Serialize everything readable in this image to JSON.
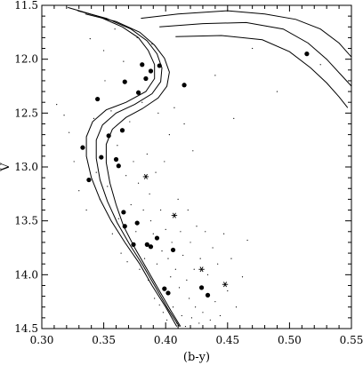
{
  "chart_data": {
    "type": "scatter",
    "title": "",
    "xlabel": "(b-y)",
    "ylabel": "V",
    "xlim": [
      0.3,
      0.55
    ],
    "ylim": [
      14.5,
      11.5
    ],
    "y_inverted": true,
    "grid": false,
    "x_ticks": [
      "0.30",
      "0.35",
      "0.40",
      "0.45",
      "0.50",
      "0.55"
    ],
    "y_ticks": [
      "11.5",
      "12.0",
      "12.5",
      "13.0",
      "13.5",
      "14.0",
      "14.5"
    ],
    "series": [
      {
        "marker": "filled-circle",
        "points": [
          [
            0.333,
            12.82
          ],
          [
            0.338,
            13.12
          ],
          [
            0.345,
            12.37
          ],
          [
            0.348,
            12.91
          ],
          [
            0.354,
            12.71
          ],
          [
            0.36,
            12.93
          ],
          [
            0.362,
            12.99
          ],
          [
            0.365,
            12.66
          ],
          [
            0.366,
            13.42
          ],
          [
            0.367,
            13.55
          ],
          [
            0.367,
            12.21
          ],
          [
            0.374,
            13.72
          ],
          [
            0.378,
            12.31
          ],
          [
            0.377,
            13.52
          ],
          [
            0.381,
            12.05
          ],
          [
            0.384,
            12.18
          ],
          [
            0.385,
            13.72
          ],
          [
            0.388,
            12.11
          ],
          [
            0.388,
            13.74
          ],
          [
            0.393,
            13.66
          ],
          [
            0.395,
            12.06
          ],
          [
            0.399,
            14.13
          ],
          [
            0.402,
            14.17
          ],
          [
            0.406,
            13.77
          ],
          [
            0.415,
            12.24
          ],
          [
            0.429,
            14.12
          ],
          [
            0.434,
            14.19
          ],
          [
            0.514,
            11.95
          ]
        ]
      },
      {
        "marker": "asterisk",
        "points": [
          [
            0.384,
            13.09
          ],
          [
            0.407,
            13.45
          ],
          [
            0.429,
            13.95
          ],
          [
            0.448,
            14.09
          ]
        ]
      },
      {
        "marker": "dot",
        "points": [
          [
            0.312,
            12.42
          ],
          [
            0.318,
            12.52
          ],
          [
            0.322,
            12.68
          ],
          [
            0.326,
            12.95
          ],
          [
            0.33,
            13.22
          ],
          [
            0.336,
            13.4
          ],
          [
            0.339,
            11.81
          ],
          [
            0.342,
            12.55
          ],
          [
            0.344,
            13.05
          ],
          [
            0.347,
            13.3
          ],
          [
            0.35,
            11.92
          ],
          [
            0.351,
            12.2
          ],
          [
            0.353,
            13.18
          ],
          [
            0.356,
            12.48
          ],
          [
            0.357,
            13.62
          ],
          [
            0.359,
            11.72
          ],
          [
            0.361,
            12.8
          ],
          [
            0.362,
            13.48
          ],
          [
            0.364,
            13.8
          ],
          [
            0.366,
            12.02
          ],
          [
            0.368,
            13.08
          ],
          [
            0.369,
            13.88
          ],
          [
            0.371,
            12.58
          ],
          [
            0.372,
            13.35
          ],
          [
            0.374,
            12.95
          ],
          [
            0.376,
            13.6
          ],
          [
            0.377,
            11.8
          ],
          [
            0.378,
            13.15
          ],
          [
            0.379,
            13.95
          ],
          [
            0.381,
            12.4
          ],
          [
            0.382,
            13.4
          ],
          [
            0.383,
            13.85
          ],
          [
            0.385,
            12.88
          ],
          [
            0.386,
            14.05
          ],
          [
            0.387,
            13.25
          ],
          [
            0.388,
            13.5
          ],
          [
            0.389,
            11.86
          ],
          [
            0.39,
            13.62
          ],
          [
            0.391,
            14.22
          ],
          [
            0.392,
            13.05
          ],
          [
            0.393,
            13.9
          ],
          [
            0.394,
            12.5
          ],
          [
            0.395,
            14.28
          ],
          [
            0.396,
            13.4
          ],
          [
            0.397,
            13.78
          ],
          [
            0.398,
            14.35
          ],
          [
            0.399,
            12.95
          ],
          [
            0.4,
            13.58
          ],
          [
            0.401,
            14.42
          ],
          [
            0.402,
            13.85
          ],
          [
            0.403,
            12.7
          ],
          [
            0.404,
            14.02
          ],
          [
            0.405,
            13.7
          ],
          [
            0.406,
            14.3
          ],
          [
            0.407,
            12.45
          ],
          [
            0.408,
            13.95
          ],
          [
            0.409,
            14.45
          ],
          [
            0.41,
            13.3
          ],
          [
            0.411,
            14.12
          ],
          [
            0.412,
            13.6
          ],
          [
            0.413,
            14.38
          ],
          [
            0.414,
            13.82
          ],
          [
            0.415,
            12.6
          ],
          [
            0.416,
            14.48
          ],
          [
            0.417,
            14.05
          ],
          [
            0.418,
            13.4
          ],
          [
            0.419,
            14.22
          ],
          [
            0.42,
            13.7
          ],
          [
            0.421,
            14.4
          ],
          [
            0.422,
            12.85
          ],
          [
            0.423,
            13.95
          ],
          [
            0.424,
            14.3
          ],
          [
            0.425,
            13.55
          ],
          [
            0.427,
            14.45
          ],
          [
            0.428,
            13.85
          ],
          [
            0.43,
            14.35
          ],
          [
            0.432,
            13.6
          ],
          [
            0.434,
            14.0
          ],
          [
            0.436,
            14.42
          ],
          [
            0.438,
            13.75
          ],
          [
            0.44,
            14.25
          ],
          [
            0.442,
            13.9
          ],
          [
            0.444,
            14.38
          ],
          [
            0.447,
            13.62
          ],
          [
            0.45,
            14.15
          ],
          [
            0.453,
            13.85
          ],
          [
            0.457,
            14.3
          ],
          [
            0.462,
            14.02
          ],
          [
            0.466,
            13.68
          ],
          [
            0.44,
            12.15
          ],
          [
            0.455,
            12.55
          ],
          [
            0.47,
            11.9
          ],
          [
            0.49,
            12.3
          ],
          [
            0.525,
            12.05
          ]
        ]
      }
    ],
    "isochrones": [
      [
        [
          0.321,
          11.52
        ],
        [
          0.345,
          11.6
        ],
        [
          0.365,
          11.7
        ],
        [
          0.378,
          11.8
        ],
        [
          0.386,
          11.92
        ],
        [
          0.391,
          12.05
        ],
        [
          0.391,
          12.18
        ],
        [
          0.384,
          12.3
        ],
        [
          0.368,
          12.4
        ],
        [
          0.352,
          12.47
        ],
        [
          0.341,
          12.58
        ],
        [
          0.336,
          12.72
        ],
        [
          0.336,
          12.9
        ],
        [
          0.34,
          13.1
        ],
        [
          0.347,
          13.3
        ],
        [
          0.356,
          13.5
        ],
        [
          0.367,
          13.7
        ],
        [
          0.379,
          13.9
        ],
        [
          0.389,
          14.1
        ],
        [
          0.4,
          14.3
        ],
        [
          0.409,
          14.48
        ]
      ],
      [
        [
          0.329,
          11.55
        ],
        [
          0.352,
          11.62
        ],
        [
          0.372,
          11.72
        ],
        [
          0.385,
          11.83
        ],
        [
          0.393,
          11.95
        ],
        [
          0.397,
          12.08
        ],
        [
          0.396,
          12.21
        ],
        [
          0.389,
          12.32
        ],
        [
          0.375,
          12.42
        ],
        [
          0.36,
          12.5
        ],
        [
          0.349,
          12.61
        ],
        [
          0.344,
          12.75
        ],
        [
          0.344,
          12.92
        ],
        [
          0.347,
          13.12
        ],
        [
          0.353,
          13.32
        ],
        [
          0.361,
          13.52
        ],
        [
          0.371,
          13.72
        ],
        [
          0.382,
          13.92
        ],
        [
          0.392,
          14.12
        ],
        [
          0.402,
          14.32
        ],
        [
          0.411,
          14.48
        ]
      ],
      [
        [
          0.335,
          11.58
        ],
        [
          0.36,
          11.65
        ],
        [
          0.379,
          11.75
        ],
        [
          0.391,
          11.87
        ],
        [
          0.399,
          11.99
        ],
        [
          0.403,
          12.12
        ],
        [
          0.401,
          12.25
        ],
        [
          0.394,
          12.36
        ],
        [
          0.381,
          12.46
        ],
        [
          0.368,
          12.54
        ],
        [
          0.357,
          12.65
        ],
        [
          0.352,
          12.79
        ],
        [
          0.352,
          12.96
        ],
        [
          0.355,
          13.15
        ],
        [
          0.36,
          13.35
        ],
        [
          0.366,
          13.55
        ],
        [
          0.375,
          13.75
        ],
        [
          0.385,
          13.95
        ],
        [
          0.395,
          14.15
        ],
        [
          0.404,
          14.33
        ],
        [
          0.412,
          14.48
        ]
      ]
    ],
    "giant_branches": [
      [
        [
          0.38,
          11.62
        ],
        [
          0.41,
          11.58
        ],
        [
          0.45,
          11.55
        ],
        [
          0.48,
          11.58
        ],
        [
          0.505,
          11.63
        ],
        [
          0.525,
          11.72
        ],
        [
          0.54,
          11.85
        ],
        [
          0.55,
          11.98
        ]
      ],
      [
        [
          0.395,
          11.7
        ],
        [
          0.43,
          11.67
        ],
        [
          0.465,
          11.66
        ],
        [
          0.495,
          11.72
        ],
        [
          0.515,
          11.85
        ],
        [
          0.53,
          12.0
        ],
        [
          0.542,
          12.15
        ],
        [
          0.55,
          12.25
        ]
      ],
      [
        [
          0.408,
          11.79
        ],
        [
          0.445,
          11.78
        ],
        [
          0.478,
          11.82
        ],
        [
          0.5,
          11.93
        ],
        [
          0.517,
          12.08
        ],
        [
          0.53,
          12.22
        ],
        [
          0.54,
          12.35
        ],
        [
          0.547,
          12.45
        ]
      ]
    ]
  }
}
